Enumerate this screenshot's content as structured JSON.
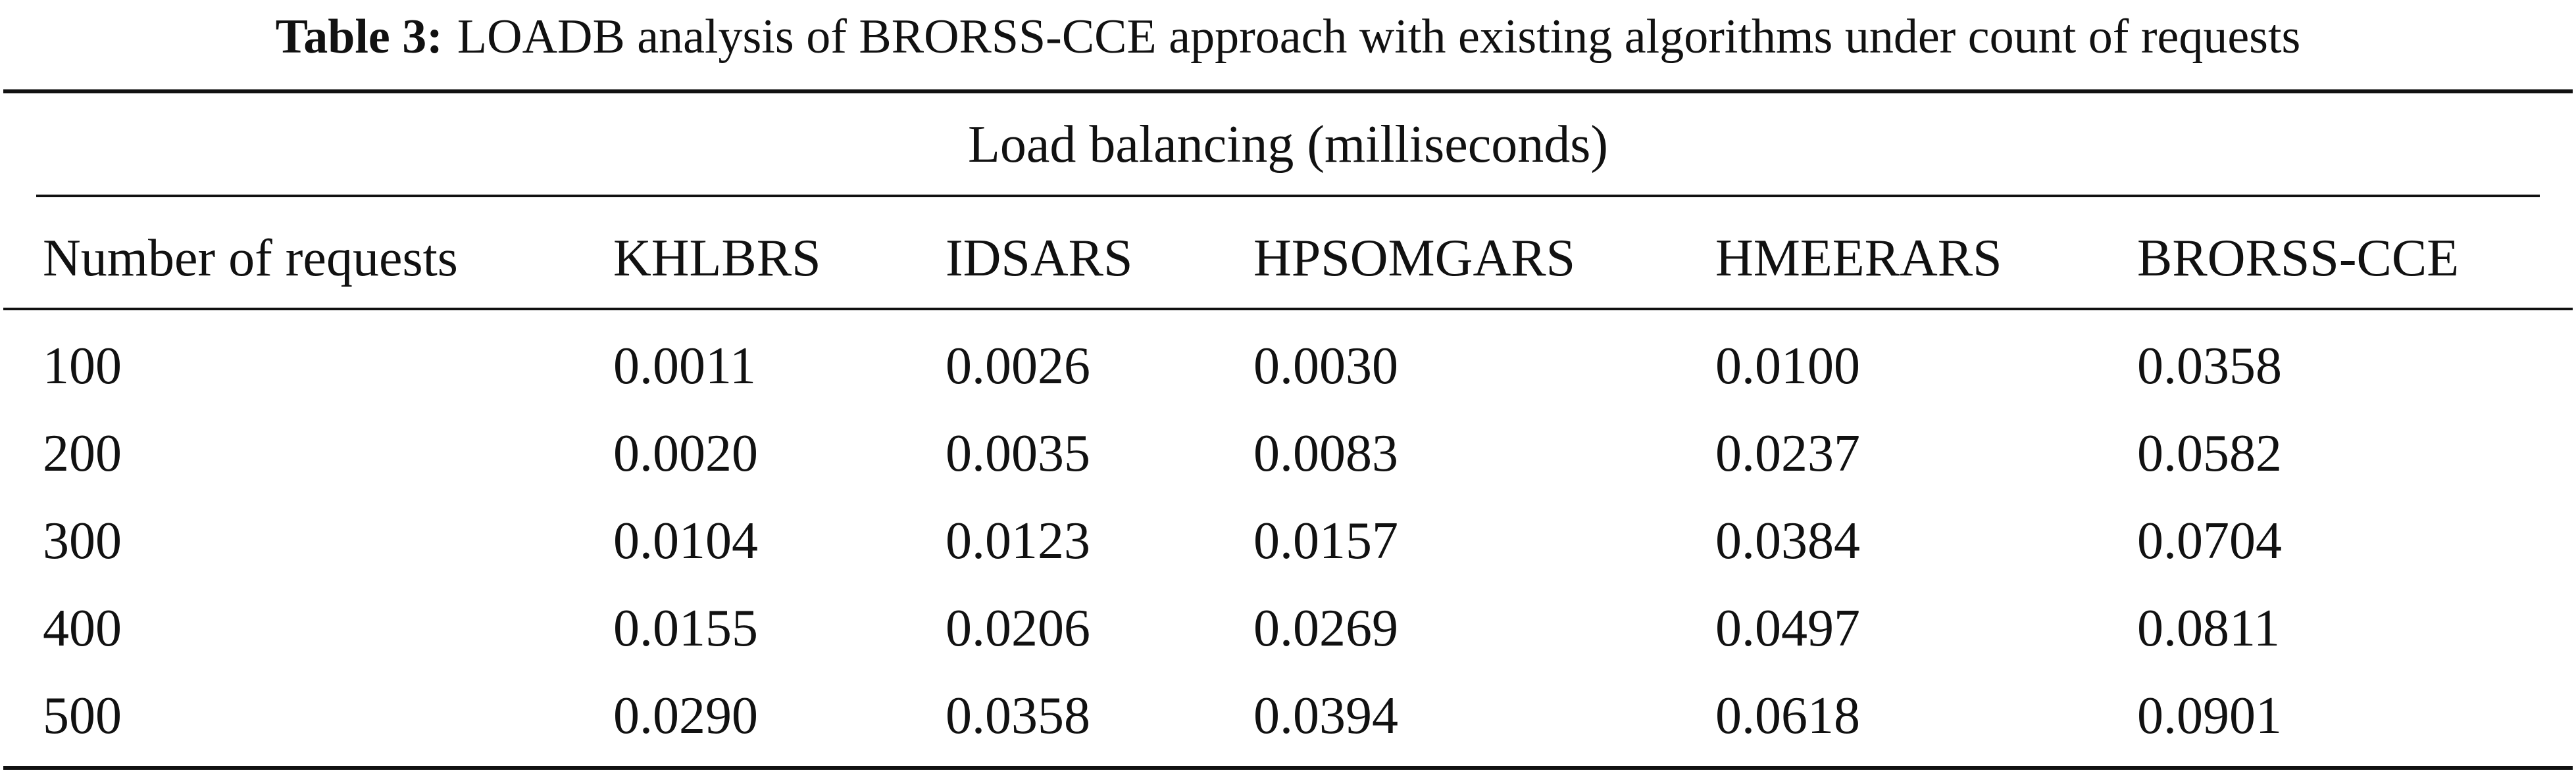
{
  "caption": {
    "label": "Table 3:",
    "text": "LOADB analysis of BRORSS-CCE approach with existing algorithms under count of requests"
  },
  "table": {
    "group_header": "Load balancing (milliseconds)",
    "columns": [
      "Number of requests",
      "KHLBRS",
      "IDSARS",
      "HPSOMGARS",
      "HMEERARS",
      "BRORSS-CCE"
    ],
    "rows": [
      [
        "100",
        "0.0011",
        "0.0026",
        "0.0030",
        "0.0100",
        "0.0358"
      ],
      [
        "200",
        "0.0020",
        "0.0035",
        "0.0083",
        "0.0237",
        "0.0582"
      ],
      [
        "300",
        "0.0104",
        "0.0123",
        "0.0157",
        "0.0384",
        "0.0704"
      ],
      [
        "400",
        "0.0155",
        "0.0206",
        "0.0269",
        "0.0497",
        "0.0811"
      ],
      [
        "500",
        "0.0290",
        "0.0358",
        "0.0394",
        "0.0618",
        "0.0901"
      ]
    ]
  }
}
